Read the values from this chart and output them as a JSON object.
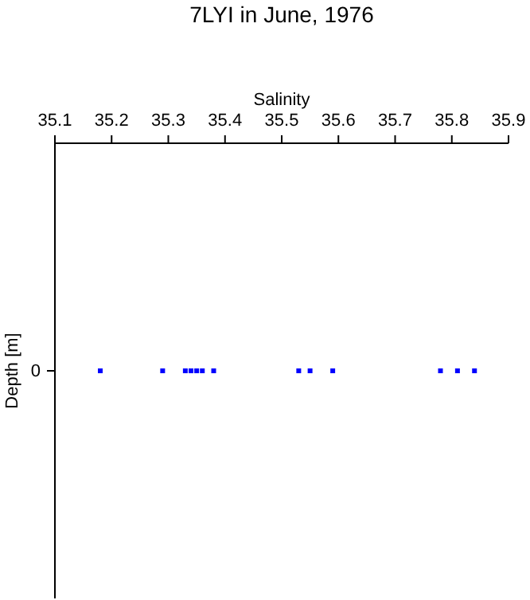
{
  "chart_data": {
    "type": "scatter",
    "orientation": "horizontal",
    "title": "7LYI in June, 1976",
    "xlabel": "Salinity",
    "ylabel": "Depth [m]",
    "categories": [
      "0"
    ],
    "series": [
      {
        "color": "#0000ff",
        "values": [
          35.18
        ]
      },
      {
        "color": "#0000ff",
        "values": [
          35.29
        ]
      },
      {
        "color": "#0000ff",
        "values": [
          35.33
        ]
      },
      {
        "color": "#0000ff",
        "values": [
          35.34
        ]
      },
      {
        "color": "#0000ff",
        "values": [
          35.35
        ]
      },
      {
        "color": "#0000ff",
        "values": [
          35.36
        ]
      },
      {
        "color": "#0000ff",
        "values": [
          35.38
        ]
      },
      {
        "color": "#0000ff",
        "values": [
          35.53
        ]
      },
      {
        "color": "#0000ff",
        "values": [
          35.55
        ]
      },
      {
        "color": "#0000ff",
        "values": [
          35.59
        ]
      },
      {
        "color": "#0000ff",
        "values": [
          35.78
        ]
      },
      {
        "color": "#0000ff",
        "values": [
          35.81
        ]
      },
      {
        "color": "#0000ff",
        "values": [
          35.84
        ]
      }
    ],
    "marker": "square",
    "xlim": [
      35.1,
      35.9
    ],
    "xticks": [
      35.1,
      35.2,
      35.3,
      35.4,
      35.5,
      35.6,
      35.7,
      35.8,
      35.9
    ]
  }
}
